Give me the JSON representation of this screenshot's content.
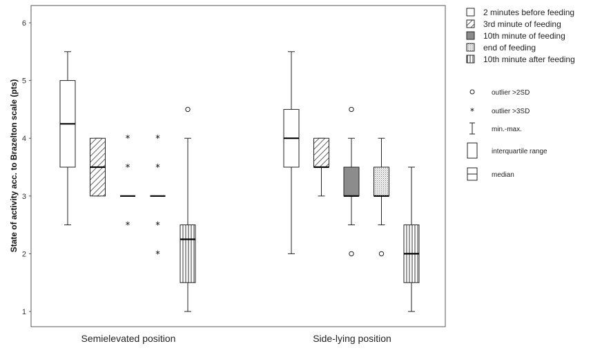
{
  "chart_data": {
    "type": "boxplot",
    "ylabel": "State of activity acc. to Brazelton scale (pts)",
    "ylim": [
      0.8,
      6.4
    ],
    "yticks": [
      1,
      2,
      3,
      4,
      5,
      6
    ],
    "categories": [
      "Semielevated position",
      "Side-lying position"
    ],
    "series": [
      {
        "name": "2 minutes before feeding",
        "fill": "#ffffff",
        "boxes": [
          {
            "min": 2.5,
            "q1": 3.5,
            "median": 4.25,
            "q3": 5.0,
            "max": 5.5,
            "outliers": [],
            "extremes": []
          },
          {
            "min": 2.0,
            "q1": 3.5,
            "median": 4.0,
            "q3": 4.5,
            "max": 5.5,
            "outliers": [],
            "extremes": []
          }
        ]
      },
      {
        "name": "3rd minute of feeding",
        "fill": "diag",
        "boxes": [
          {
            "min": 3.0,
            "q1": 3.0,
            "median": 3.5,
            "q3": 4.0,
            "max": 4.0,
            "outliers": [],
            "extremes": []
          },
          {
            "min": 3.0,
            "q1": 3.5,
            "median": 3.5,
            "q3": 4.0,
            "max": 4.0,
            "outliers": [],
            "extremes": []
          }
        ]
      },
      {
        "name": "10th minute of feeding",
        "fill": "#8c8c8c",
        "boxes": [
          {
            "min": 3.0,
            "q1": 3.0,
            "median": 3.0,
            "q3": 3.0,
            "max": 3.0,
            "outliers": [],
            "extremes": [
              2.5,
              3.5,
              4.0
            ]
          },
          {
            "min": 2.5,
            "q1": 3.0,
            "median": 3.0,
            "q3": 3.5,
            "max": 4.0,
            "outliers": [
              2.0,
              4.5
            ],
            "extremes": []
          }
        ]
      },
      {
        "name": "end of feeding",
        "fill": "dots",
        "boxes": [
          {
            "min": 3.0,
            "q1": 3.0,
            "median": 3.0,
            "q3": 3.0,
            "max": 3.0,
            "outliers": [],
            "extremes": [
              2.0,
              2.5,
              3.5,
              4.0
            ]
          },
          {
            "min": 2.5,
            "q1": 3.0,
            "median": 3.0,
            "q3": 3.5,
            "max": 4.0,
            "outliers": [
              2.0
            ],
            "extremes": []
          }
        ]
      },
      {
        "name": "10th minute after feeding",
        "fill": "vert",
        "boxes": [
          {
            "min": 1.0,
            "q1": 1.5,
            "median": 2.25,
            "q3": 2.5,
            "max": 4.0,
            "outliers": [
              4.5
            ],
            "extremes": []
          },
          {
            "min": 1.0,
            "q1": 1.5,
            "median": 2.0,
            "q3": 2.5,
            "max": 3.5,
            "outliers": [],
            "extremes": []
          }
        ]
      }
    ],
    "symbol_legend": [
      {
        "symbol": "circle",
        "label": "outlier >2SD"
      },
      {
        "symbol": "star",
        "label": "outlier >3SD"
      },
      {
        "symbol": "whisker",
        "label": "min.-max."
      },
      {
        "symbol": "box",
        "label": "interquartile range"
      },
      {
        "symbol": "median",
        "label": "median"
      }
    ]
  }
}
